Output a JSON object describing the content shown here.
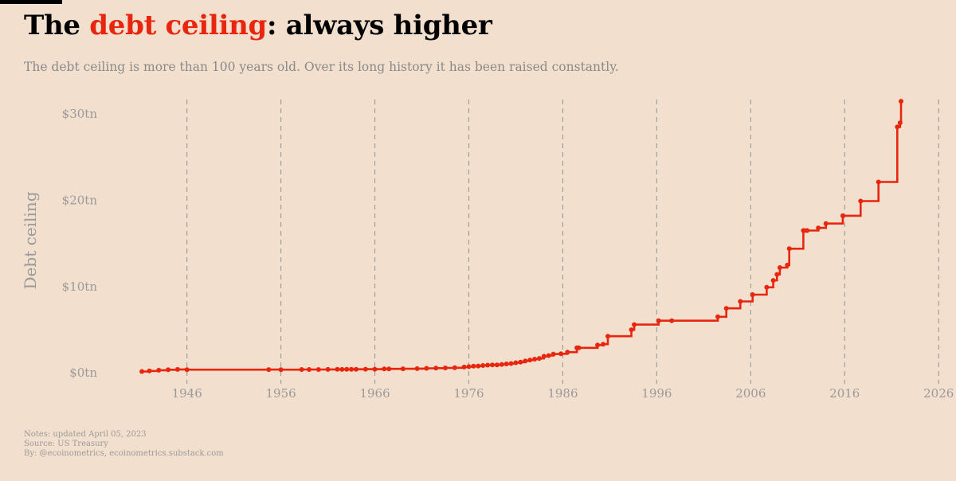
{
  "header": {
    "title_part1": "The ",
    "title_highlight": "debt ceiling",
    "title_part2": ": always higher",
    "subtitle": "The debt ceiling is more than 100 years old. Over its long history it has been raised constantly."
  },
  "footer": {
    "notes": "Notes: updated April 05, 2023",
    "source": "Source: US Treasury",
    "by": "By: @ecoinometrics, ecoinometrics.substack.com"
  },
  "colors": {
    "background": "#f3dfcd",
    "line": "#e8260f",
    "grid": "#9a9a9a",
    "text_muted": "#8a8a8a"
  },
  "chart_data": {
    "type": "line",
    "step": "post",
    "title": "The debt ceiling: always higher",
    "xlabel": "",
    "ylabel": "Debt ceiling",
    "xlim": [
      1939.5,
      2027
    ],
    "ylim": [
      -1.0,
      32.5
    ],
    "x_ticks": [
      1946,
      1956,
      1966,
      1976,
      1986,
      1996,
      2006,
      2016,
      2026
    ],
    "y_ticks": [
      0,
      10,
      20,
      30
    ],
    "y_tick_labels": [
      "$0tn",
      "$10tn",
      "$20tn",
      "$30tn"
    ],
    "grid": "vertical dashed",
    "series": [
      {
        "name": "Debt ceiling ($tn)",
        "x": [
          1941.2,
          1942.0,
          1943.0,
          1944.0,
          1945.0,
          1946.0,
          1954.7,
          1956.0,
          1958.2,
          1959.0,
          1960.0,
          1961.0,
          1962.0,
          1962.5,
          1963.0,
          1963.5,
          1964.0,
          1965.0,
          1966.0,
          1967.0,
          1967.5,
          1969.0,
          1970.5,
          1971.5,
          1972.5,
          1973.5,
          1974.5,
          1975.5,
          1976.0,
          1976.5,
          1977.0,
          1977.5,
          1978.0,
          1978.5,
          1979.0,
          1979.5,
          1980.0,
          1980.5,
          1981.0,
          1981.5,
          1982.0,
          1982.5,
          1983.0,
          1983.5,
          1984.0,
          1984.5,
          1985.0,
          1985.8,
          1986.5,
          1987.5,
          1987.7,
          1989.7,
          1990.3,
          1990.8,
          1993.3,
          1993.6,
          1996.2,
          1997.6,
          2002.5,
          2003.4,
          2004.9,
          2006.2,
          2007.7,
          2008.4,
          2008.8,
          2009.1,
          2009.9,
          2010.1,
          2011.6,
          2011.7,
          2012.0,
          2013.2,
          2014.0,
          2015.8,
          2017.7,
          2019.6,
          2021.6,
          2021.9,
          2022.0
        ],
        "values": [
          0.065,
          0.125,
          0.21,
          0.26,
          0.3,
          0.275,
          0.281,
          0.278,
          0.288,
          0.295,
          0.293,
          0.298,
          0.308,
          0.305,
          0.309,
          0.315,
          0.324,
          0.328,
          0.33,
          0.358,
          0.365,
          0.377,
          0.395,
          0.43,
          0.45,
          0.475,
          0.495,
          0.577,
          0.627,
          0.682,
          0.7,
          0.752,
          0.798,
          0.83,
          0.83,
          0.879,
          0.935,
          0.985,
          1.079,
          1.143,
          1.29,
          1.389,
          1.49,
          1.573,
          1.823,
          1.904,
          2.079,
          2.111,
          2.3,
          2.8,
          2.8,
          3.123,
          3.23,
          4.145,
          4.9,
          5.5,
          5.95,
          5.95,
          6.4,
          7.384,
          8.184,
          8.965,
          9.815,
          10.615,
          11.315,
          12.104,
          12.394,
          14.294,
          16.394,
          16.394,
          16.394,
          16.699,
          17.212,
          18.113,
          19.808,
          22.03,
          28.401,
          28.881,
          31.381
        ]
      }
    ]
  }
}
